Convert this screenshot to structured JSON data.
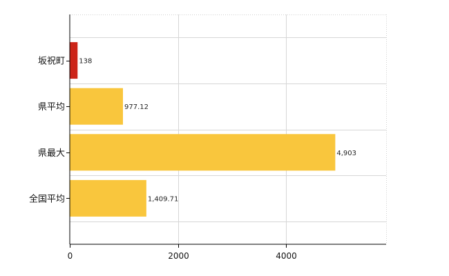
{
  "chart_data": {
    "type": "bar",
    "orientation": "horizontal",
    "categories": [
      "坂祝町",
      "県平均",
      "県最大",
      "全国平均"
    ],
    "values": [
      138,
      977.12,
      4903,
      1409.71
    ],
    "value_labels": [
      "138",
      "977.12",
      "4,903",
      "1,409.71"
    ],
    "bar_colors": [
      "#cc2418",
      "#f9c63d",
      "#f9c63d",
      "#f9c63d"
    ],
    "xlim": [
      0,
      5850
    ],
    "xticks": [
      0,
      2000,
      4000
    ],
    "xtick_labels": [
      "0",
      "2000",
      "4000"
    ],
    "grid": true,
    "legend": "none"
  }
}
